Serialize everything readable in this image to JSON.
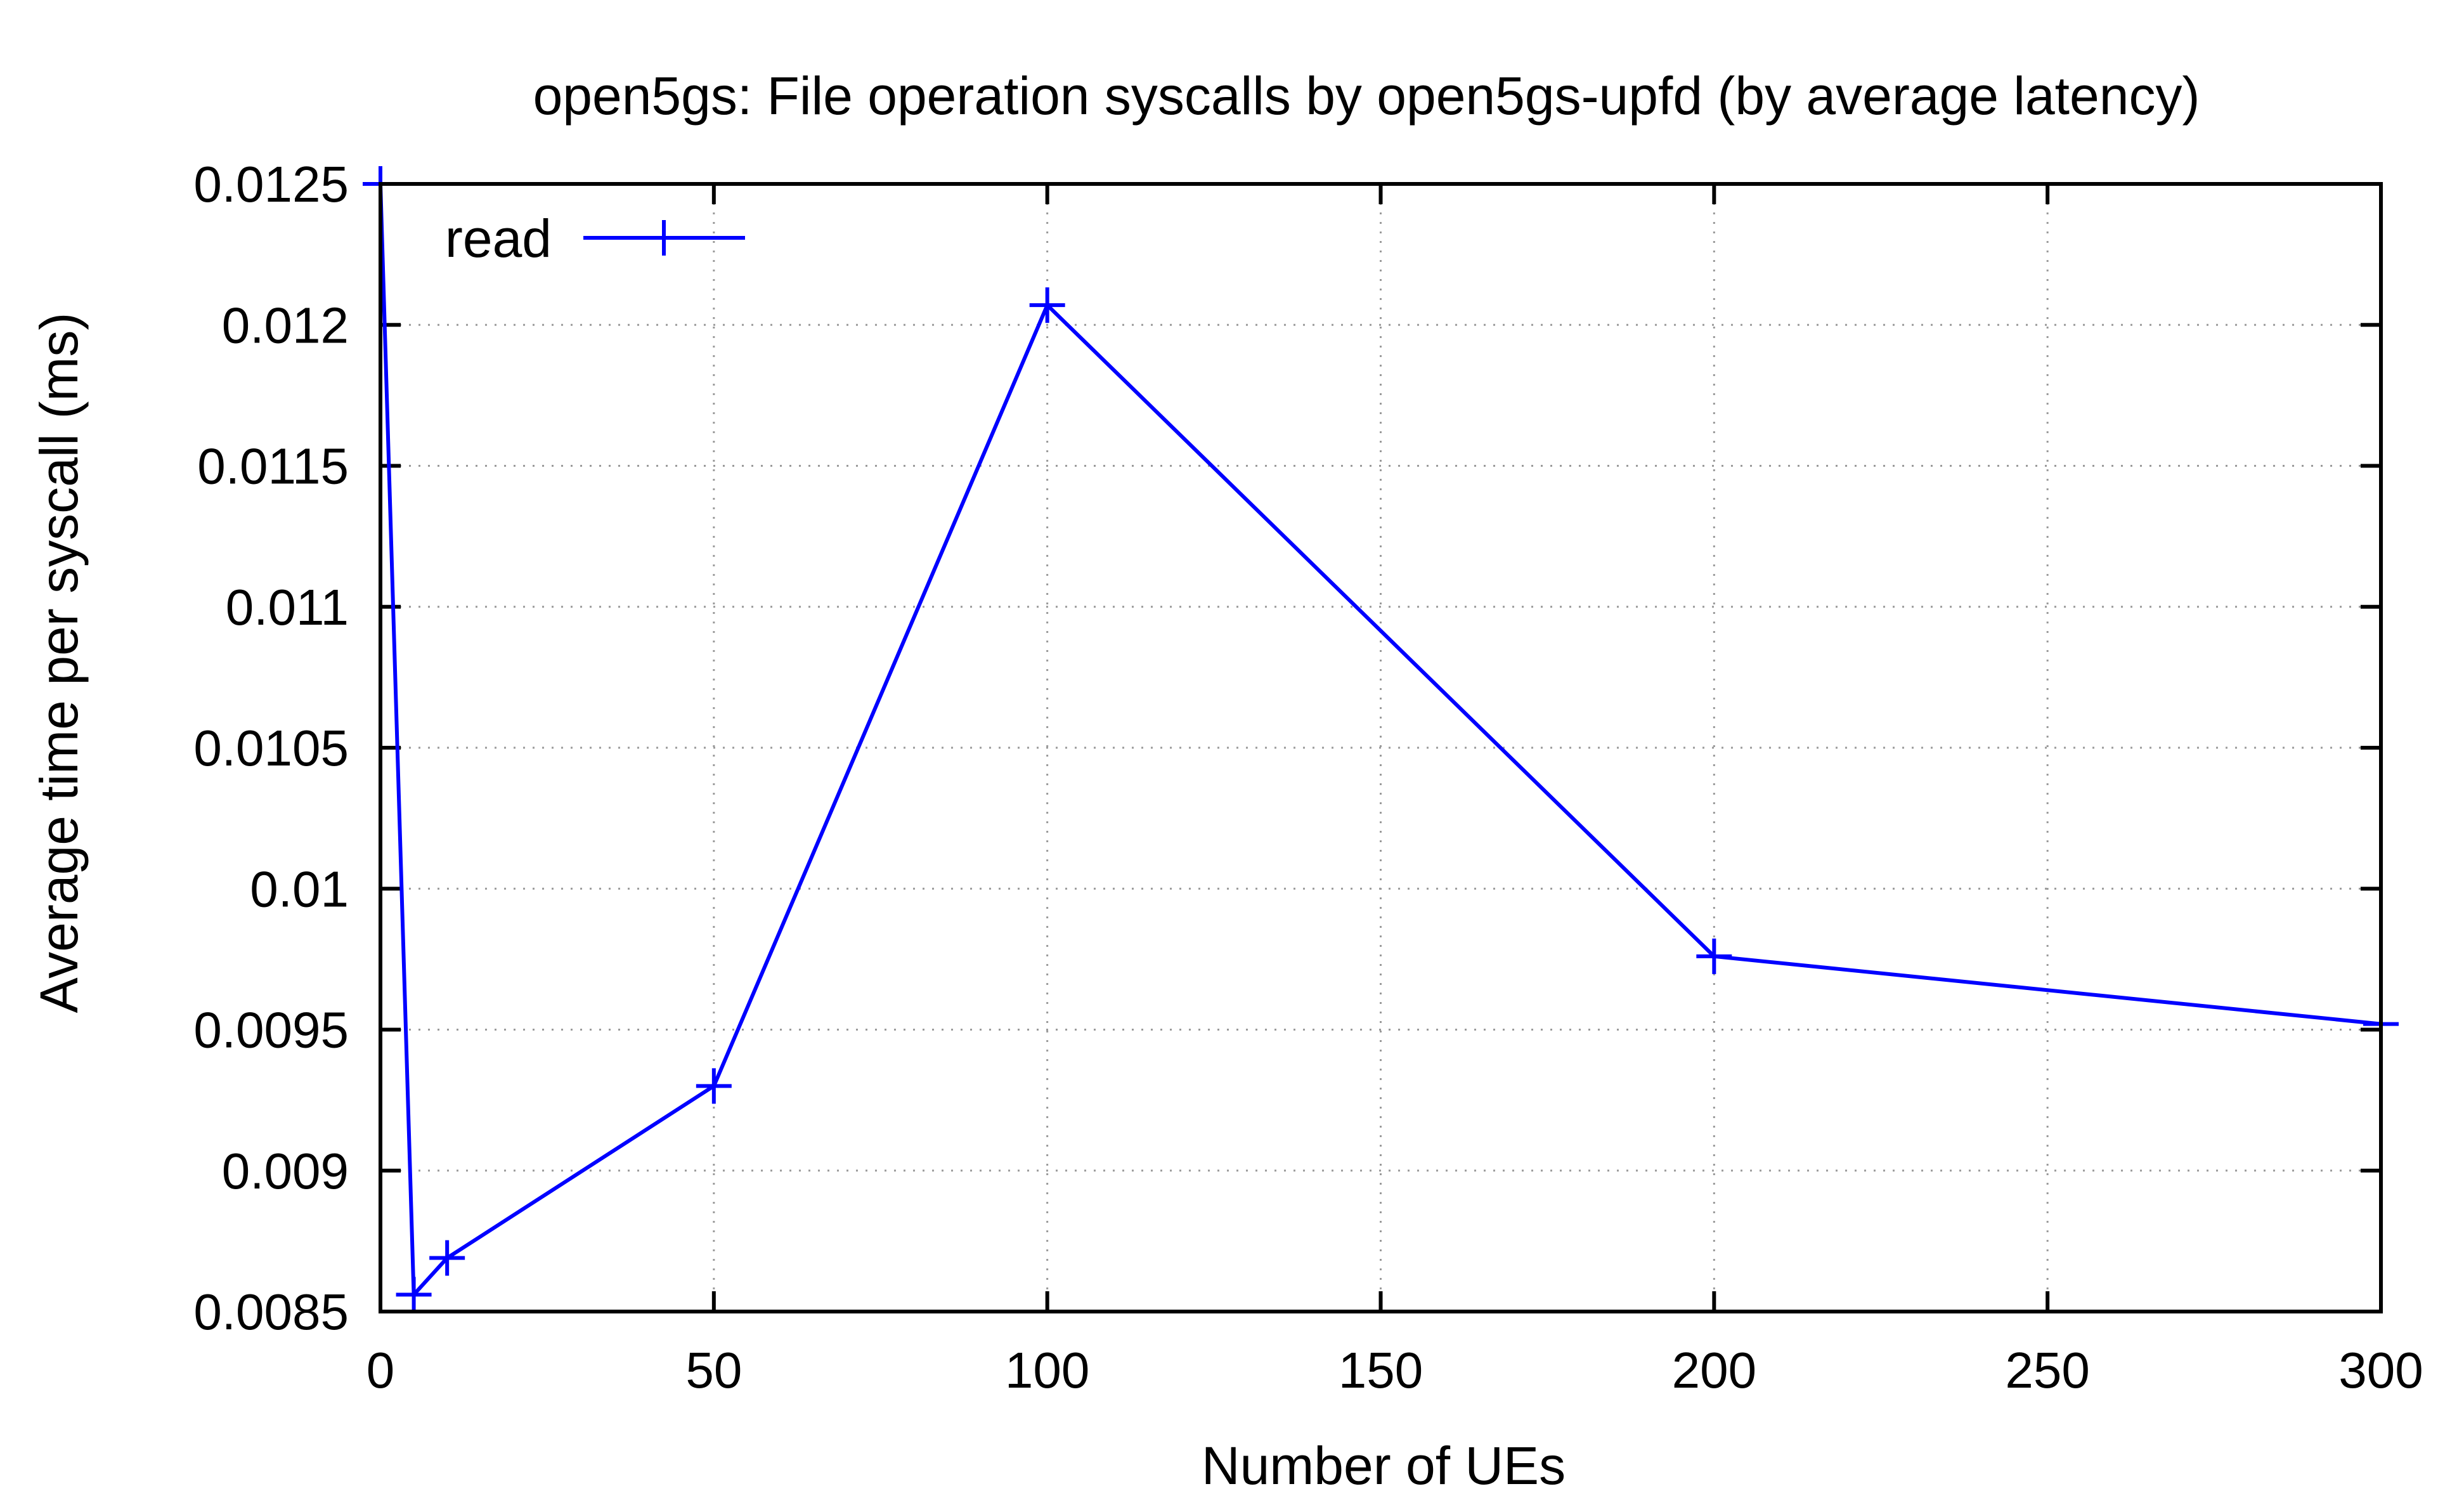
{
  "chart_data": {
    "type": "line",
    "title": "open5gs: File operation syscalls by open5gs-upfd (by average latency)",
    "xlabel": "Number of UEs",
    "ylabel": "Average time per syscall (ms)",
    "xlim": [
      0,
      300
    ],
    "ylim": [
      0.0085,
      0.0125
    ],
    "x_ticks": [
      0,
      50,
      100,
      150,
      200,
      250,
      300
    ],
    "x_tick_labels": [
      "0",
      "50",
      "100",
      "150",
      "200",
      "250",
      "300"
    ],
    "y_ticks": [
      0.0085,
      0.009,
      0.0095,
      0.01,
      0.0105,
      0.011,
      0.0115,
      0.012,
      0.0125
    ],
    "y_tick_labels": [
      "0.0085",
      "0.009",
      "0.0095",
      "0.01",
      "0.0105",
      "0.011",
      "0.0115",
      "0.012",
      "0.0125"
    ],
    "grid": true,
    "legend_position": "top-left",
    "series": [
      {
        "name": "read",
        "color": "#0000ff",
        "marker": "plus",
        "x": [
          0,
          5,
          10,
          50,
          100,
          200,
          300
        ],
        "y": [
          0.0125,
          0.00856,
          0.00869,
          0.0093,
          0.01207,
          0.00976,
          0.00952
        ]
      }
    ]
  }
}
